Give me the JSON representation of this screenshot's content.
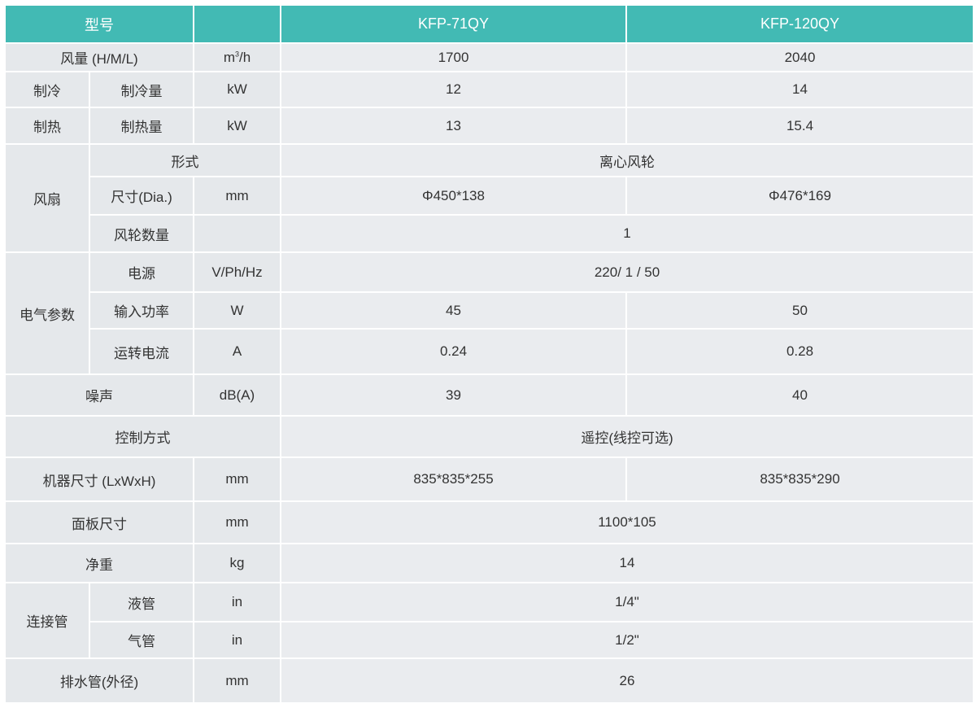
{
  "header": {
    "model_label": "型号",
    "unit": "",
    "models": [
      "KFP-71QY",
      "KFP-120QY"
    ]
  },
  "colors": {
    "header_bg": "#42bab4",
    "cell_bg": "#e5e8eb"
  },
  "rows": {
    "airflow": {
      "label": "风量 (H/M/L)",
      "unit_base": "m",
      "unit_sup": "3",
      "unit_rest": "/h",
      "v1": "1700",
      "v2": "2040"
    },
    "cooling": {
      "group": "制冷",
      "label": "制冷量",
      "unit": "kW",
      "v1": "12",
      "v2": "14"
    },
    "heating": {
      "group": "制热",
      "label": "制热量",
      "unit": "kW",
      "v1": "13",
      "v2": "15.4"
    },
    "fan": {
      "group": "风扇",
      "type": {
        "label": "形式",
        "value": "离心风轮"
      },
      "size": {
        "label": "尺寸(Dia.)",
        "unit": "mm",
        "v1": "Φ450*138",
        "v2": "Φ476*169"
      },
      "count": {
        "label": "风轮数量",
        "unit": "",
        "value": "1"
      }
    },
    "electrical": {
      "group": "电气参数",
      "power_supply": {
        "label": "电源",
        "unit": "V/Ph/Hz",
        "value": "220/ 1 / 50"
      },
      "input_power": {
        "label": "输入功率",
        "unit": "W",
        "v1": "45",
        "v2": "50"
      },
      "current": {
        "label": "运转电流",
        "unit": "A",
        "v1": "0.24",
        "v2": "0.28"
      }
    },
    "noise": {
      "label": "噪声",
      "unit": "dB(A)",
      "v1": "39",
      "v2": "40"
    },
    "control": {
      "label": "控制方式",
      "value": "遥控(线控可选)"
    },
    "unit_size": {
      "label": "机器尺寸 (LxWxH)",
      "unit": "mm",
      "v1": "835*835*255",
      "v2": "835*835*290"
    },
    "panel_size": {
      "label": "面板尺寸",
      "unit": "mm",
      "value": "1100*105"
    },
    "net_weight": {
      "label": "净重",
      "unit": "kg",
      "value": "14"
    },
    "piping": {
      "group": "连接管",
      "liquid": {
        "label": "液管",
        "unit": "in",
        "value": "1/4\""
      },
      "gas": {
        "label": "气管",
        "unit": "in",
        "value": "1/2\""
      }
    },
    "drain": {
      "label": "排水管(外径)",
      "unit": "mm",
      "value": "26"
    }
  }
}
